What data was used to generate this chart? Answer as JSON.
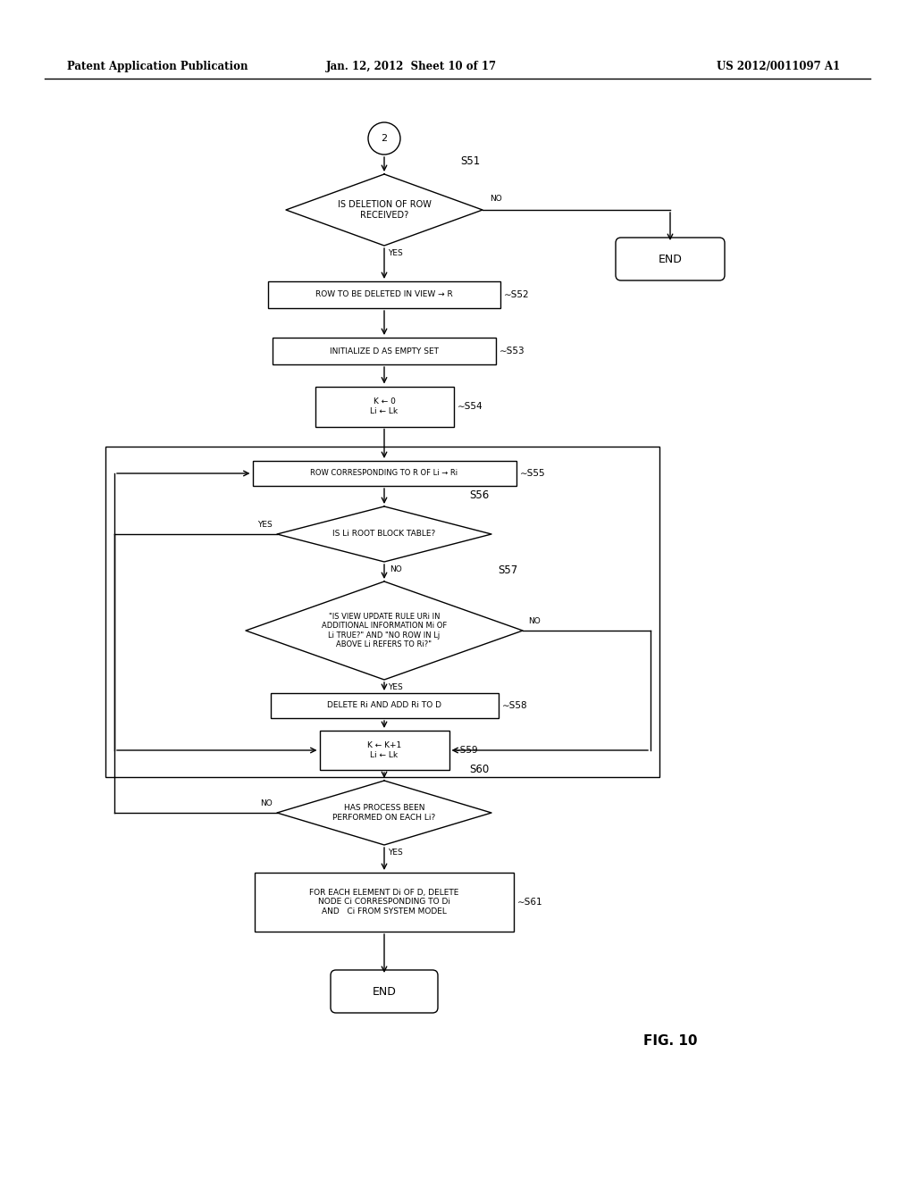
{
  "bg_color": "#ffffff",
  "header_left": "Patent Application Publication",
  "header_mid": "Jan. 12, 2012  Sheet 10 of 17",
  "header_right": "US 2012/0011097 A1",
  "fig_label": "FIG. 10",
  "lw": 1.0,
  "fs_label": 7.0,
  "fs_step": 6.5,
  "fs_connector": 8.5,
  "fs_yesno": 6.5,
  "fs_fignum": 11
}
